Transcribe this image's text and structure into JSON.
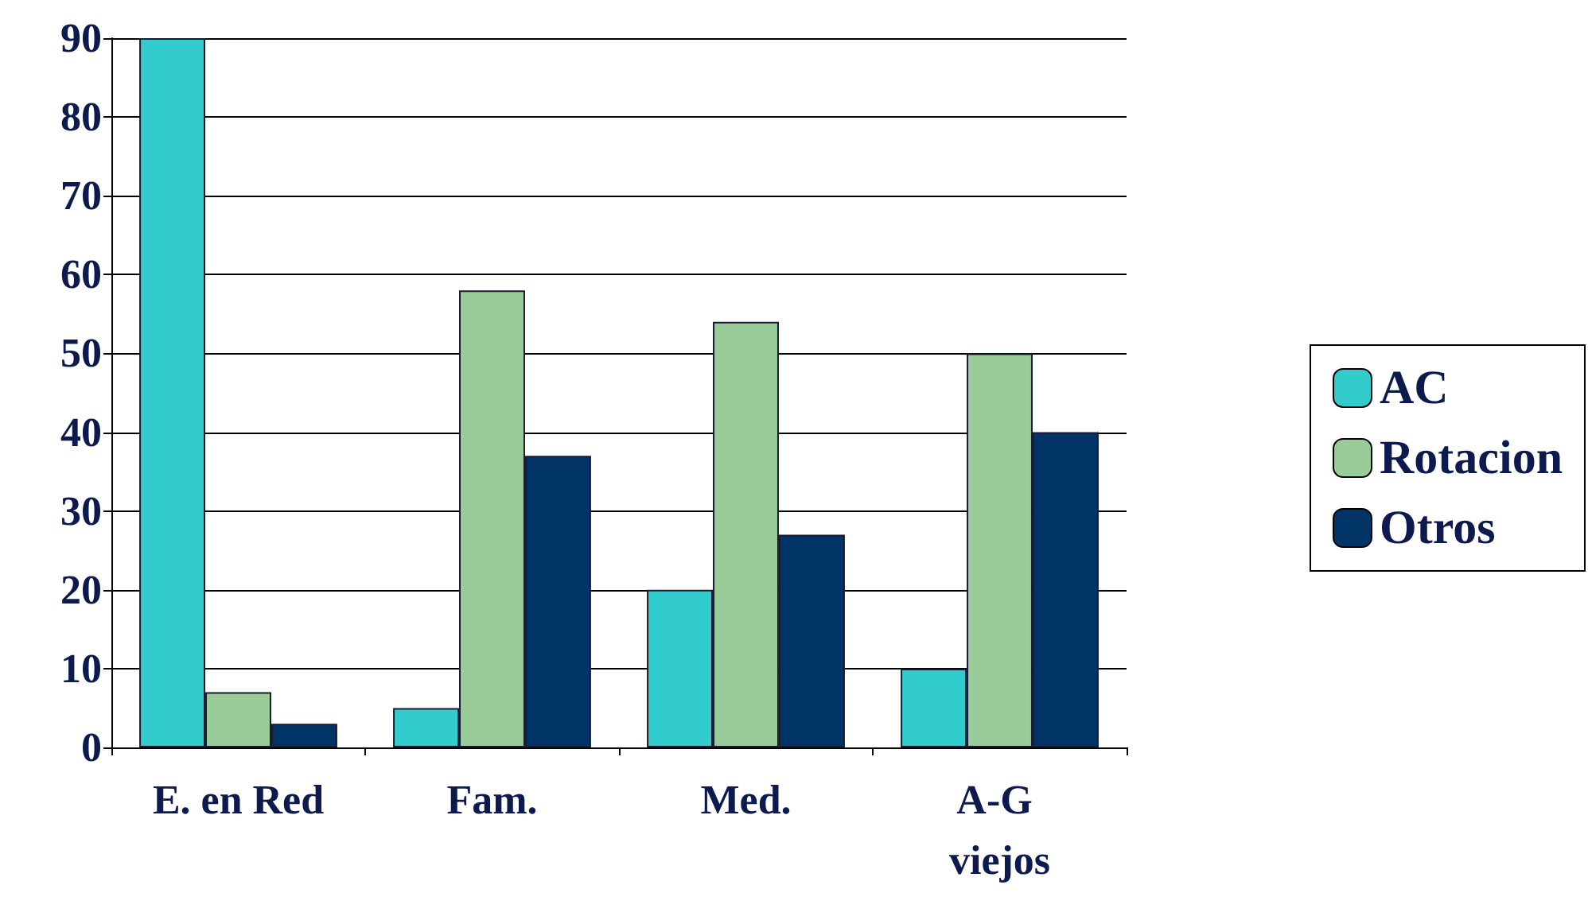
{
  "chart_data": {
    "type": "bar",
    "categories": [
      "E. en Red",
      "Fam.",
      "Med.",
      "A-G viejos"
    ],
    "series": [
      {
        "name": "AC",
        "color": "#33cccc",
        "values": [
          90,
          5,
          20,
          10
        ]
      },
      {
        "name": "Rotacion",
        "color": "#99cc99",
        "values": [
          7,
          58,
          54,
          50
        ]
      },
      {
        "name": "Otros",
        "color": "#003366",
        "values": [
          3,
          37,
          27,
          40
        ]
      }
    ],
    "ylim": [
      0,
      90
    ],
    "yticks": [
      0,
      10,
      20,
      30,
      40,
      50,
      60,
      70,
      80,
      90
    ],
    "grid": "y",
    "legend": "right"
  }
}
